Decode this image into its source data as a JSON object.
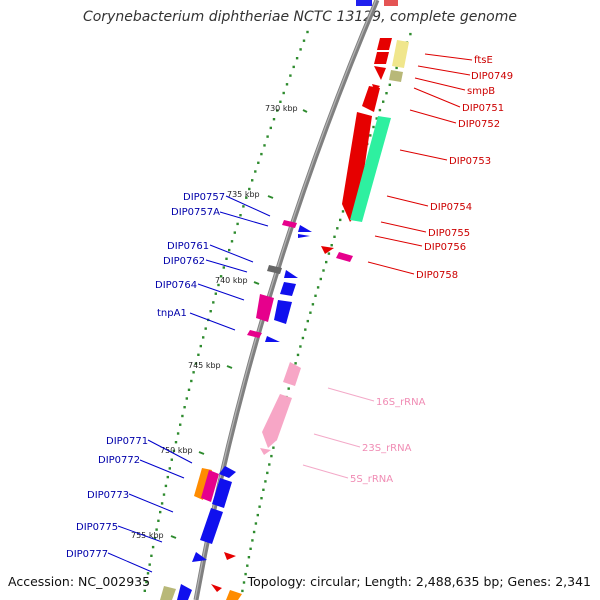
{
  "title": "Corynebacterium diphtheriae NCTC 13129, complete genome",
  "footer": {
    "accession": "Accession: NC_002935",
    "summary": "Topology: circular; Length: 2,488,635 bp; Genes: 2,341"
  },
  "colors": {
    "forward_label": "#cc0000",
    "reverse_label": "#0000aa",
    "rna_label": "#f08cb4",
    "backbone": "#7f7f7f",
    "tick": "#2e8b2e"
  },
  "kbp_ticks": [
    "730 kbp",
    "735 kbp",
    "740 kbp",
    "745 kbp",
    "750 kbp",
    "755 kbp"
  ],
  "forward_genes": [
    "ftsE",
    "DIP0749",
    "smpB",
    "DIP0751",
    "DIP0752",
    "DIP0753",
    "DIP0754",
    "DIP0755",
    "DIP0756",
    "DIP0758"
  ],
  "reverse_genes": [
    "DIP0757",
    "DIP0757A",
    "DIP0761",
    "DIP0762",
    "DIP0764",
    "tnpA1",
    "DIP0771",
    "DIP0772",
    "DIP0773",
    "DIP0775",
    "DIP0777"
  ],
  "rna_genes": [
    "16S_rRNA",
    "23S_rRNA",
    "5S_rRNA"
  ]
}
